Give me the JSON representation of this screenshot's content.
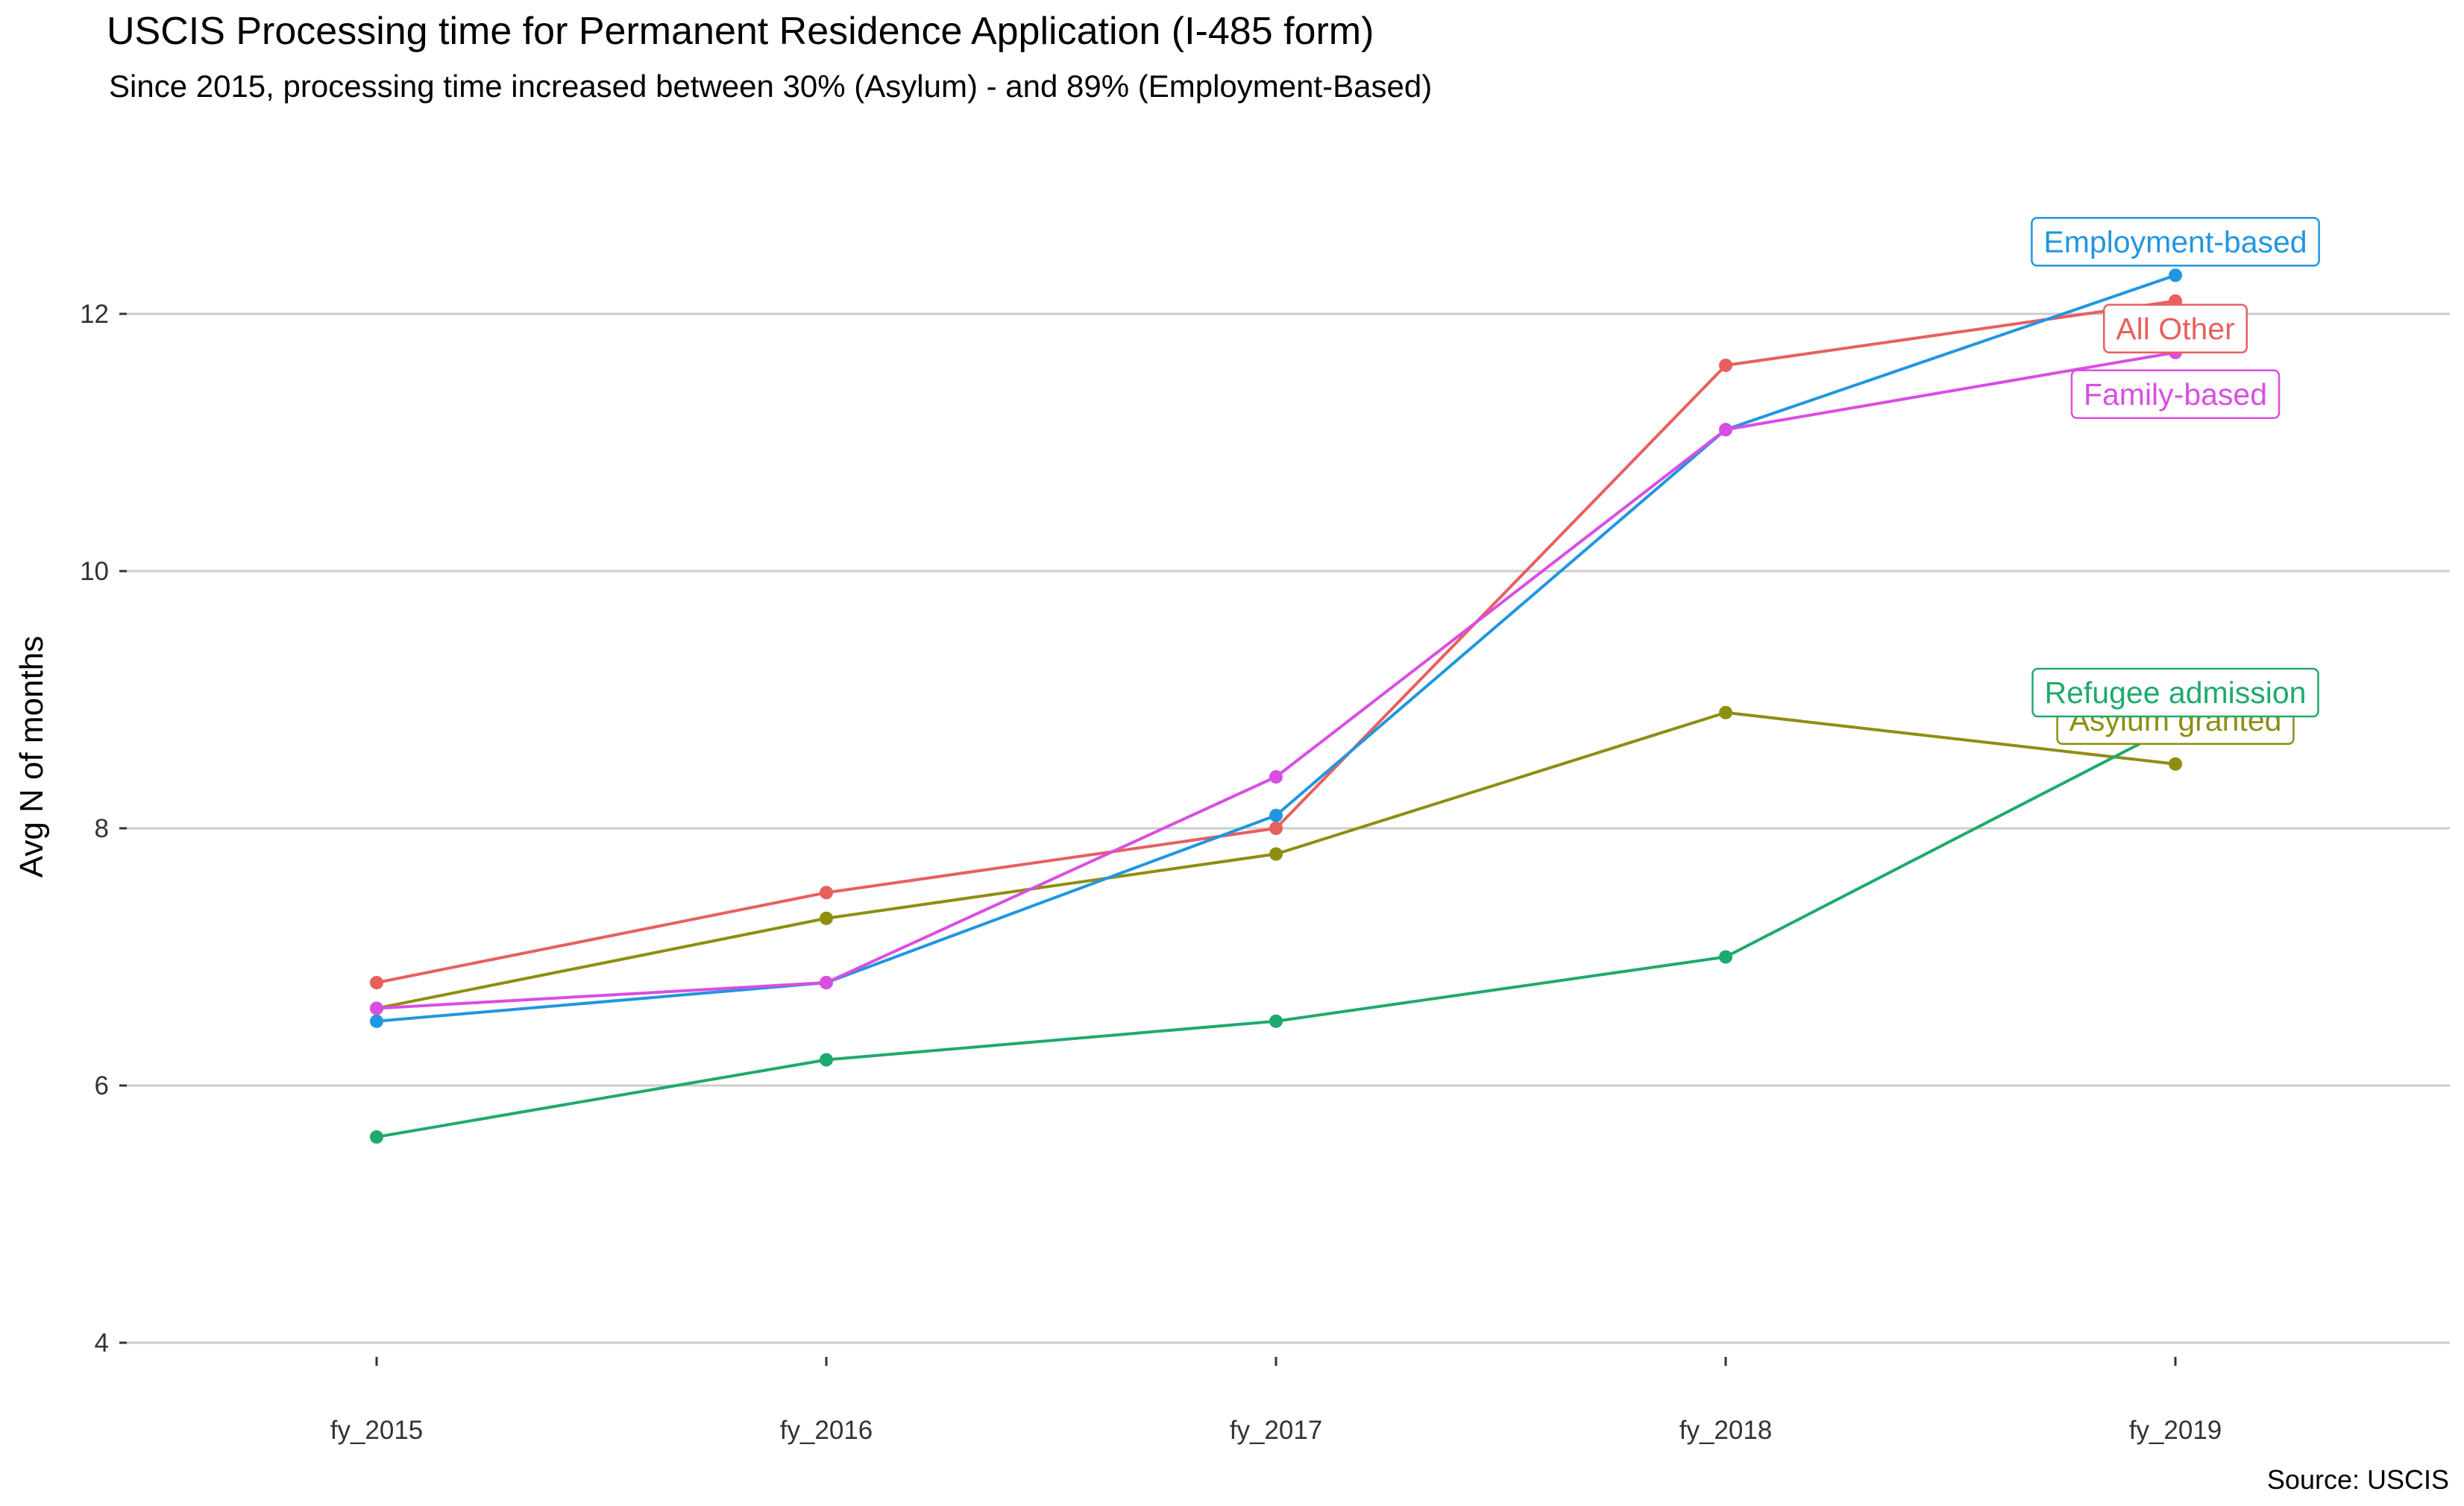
{
  "chart_data": {
    "type": "line",
    "title": "USCIS Processing time for Permanent Residence Application (I-485 form)",
    "subtitle": "Since 2015, processing time increased between 30% (Asylum) - and 89% (Employment-Based)",
    "caption": "Source: USCIS",
    "xlabel": "",
    "ylabel": "Avg N of months",
    "categories": [
      "fy_2015",
      "fy_2016",
      "fy_2017",
      "fy_2018",
      "fy_2019"
    ],
    "ylim": [
      4,
      13
    ],
    "yticks": [
      4,
      6,
      8,
      10,
      12
    ],
    "grid": "horizontal major gridlines",
    "legend": "direct labels at the right end of each line",
    "series": [
      {
        "name": "All Other",
        "color": "#E7605E",
        "values": [
          6.8,
          7.5,
          8.0,
          11.6,
          12.1
        ]
      },
      {
        "name": "Asylum granted",
        "color": "#8E8E10",
        "values": [
          6.6,
          7.3,
          7.8,
          8.9,
          8.5
        ]
      },
      {
        "name": "Refugee admission",
        "color": "#1EAA6C",
        "values": [
          5.6,
          6.2,
          6.5,
          7.0,
          8.8
        ]
      },
      {
        "name": "Employment-based",
        "color": "#2196E0",
        "values": [
          6.5,
          6.8,
          8.1,
          11.1,
          12.3
        ]
      },
      {
        "name": "Family-based",
        "color": "#D94EE2",
        "values": [
          6.6,
          6.8,
          8.4,
          11.1,
          11.7
        ]
      }
    ]
  }
}
